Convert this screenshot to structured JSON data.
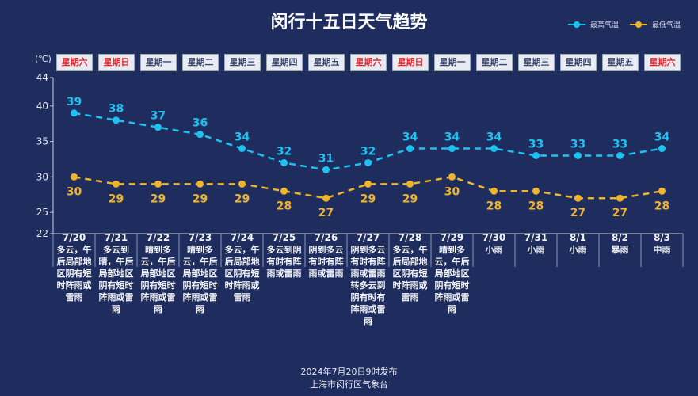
{
  "title": "闵行十五日天气趋势",
  "legend": {
    "high": "最高气温",
    "low": "最低气温"
  },
  "unit": "(℃)",
  "colors": {
    "high": "#1cc3f0",
    "low": "#f0b428",
    "weekend": "#e8262a",
    "background": "#1f2d5e"
  },
  "weekdays": [
    "星期六",
    "星期日",
    "星期一",
    "星期二",
    "星期三",
    "星期四",
    "星期五",
    "星期六",
    "星期日",
    "星期一",
    "星期二",
    "星期三",
    "星期四",
    "星期五",
    "星期六"
  ],
  "weekend_flags": [
    true,
    true,
    false,
    false,
    false,
    false,
    false,
    true,
    true,
    false,
    false,
    false,
    false,
    false,
    true
  ],
  "descriptions": [
    "多云，午后局部地区阴有短时阵雨或雷雨",
    "多云到晴，午后局部地区阴有短时阵雨或雷雨",
    "晴到多云，午后局部地区阴有短时阵雨或雷雨",
    "晴到多云，午后局部地区阴有短时阵雨或雷雨",
    "多云，午后局部地区阴有短时阵雨或雷雨",
    "多云到阴有时有阵雨或雷雨",
    "阴到多云有时有阵雨或雷雨",
    "阴到多云有时有阵雨或雷雨转多云到阴有时有阵雨或雷雨",
    "多云，午后局部地区阴有短时阵雨或雷雨",
    "晴到多云，午后局部地区阴有短时阵雨或雷雨",
    "小雨",
    "小雨",
    "小雨",
    "暴雨",
    "中雨"
  ],
  "chart_data": {
    "type": "line",
    "categories": [
      "7/20",
      "7/21",
      "7/22",
      "7/23",
      "7/24",
      "7/25",
      "7/26",
      "7/27",
      "7/28",
      "7/29",
      "7/30",
      "7/31",
      "8/1",
      "8/2",
      "8/3"
    ],
    "series": [
      {
        "name": "最高气温",
        "values": [
          39,
          38,
          37,
          36,
          34,
          32,
          31,
          32,
          34,
          34,
          34,
          33,
          33,
          33,
          34
        ]
      },
      {
        "name": "最低气温",
        "values": [
          30,
          29,
          29,
          29,
          29,
          28,
          27,
          29,
          29,
          30,
          28,
          28,
          27,
          27,
          28
        ]
      }
    ],
    "ylim": [
      22,
      44
    ],
    "yticks": [
      22,
      25,
      30,
      35,
      40,
      44
    ],
    "ylabel": "(℃)",
    "line_style": "dashed",
    "data_labels": true,
    "grid": false
  },
  "footer": {
    "line1": "2024年7月20日9时发布",
    "line2": "上海市闵行区气象台"
  }
}
